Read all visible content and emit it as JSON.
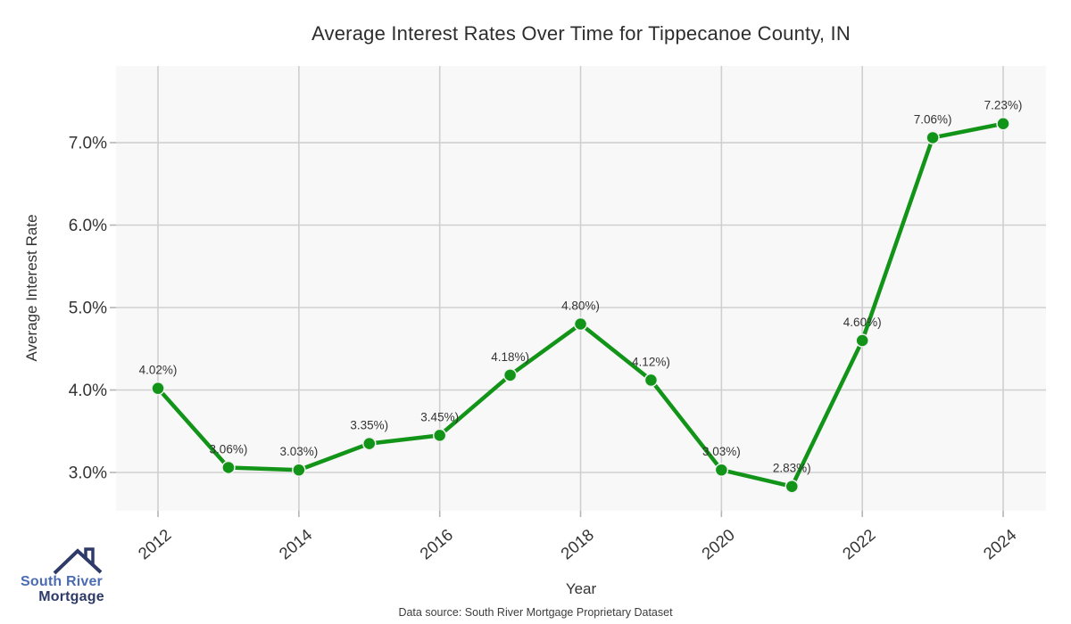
{
  "title": "Average Interest Rates Over Time for Tippecanoe County, IN",
  "footer": {
    "source_note": "Data source: South River Mortgage Proprietary Dataset"
  },
  "logo": {
    "line1": "South River",
    "line2": "Mortgage",
    "icon": "house-roof-icon",
    "text_color_primary": "#4a6cb3",
    "text_color_secondary": "#2e3a68"
  },
  "chart_data": {
    "type": "line",
    "title": "Average Interest Rates Over Time for Tippecanoe County, IN",
    "xlabel": "Year",
    "ylabel": "Average Interest Rate",
    "x": [
      2012,
      2013,
      2014,
      2015,
      2016,
      2017,
      2018,
      2019,
      2020,
      2021,
      2022,
      2023,
      2024
    ],
    "series": [
      {
        "name": "Average Interest Rate",
        "values": [
          4.02,
          3.06,
          3.03,
          3.35,
          3.45,
          4.18,
          4.8,
          4.12,
          3.03,
          2.83,
          4.6,
          7.06,
          7.23
        ]
      }
    ],
    "point_labels": [
      "4.02%)",
      "3.06%)",
      "3.03%)",
      "3.35%)",
      "3.45%)",
      "4.18%)",
      "4.80%)",
      "4.12%)",
      "3.03%)",
      "2.83%)",
      "4.60%)",
      "7.06%)",
      "7.23%)"
    ],
    "xtick_values": [
      2012,
      2014,
      2016,
      2018,
      2020,
      2022,
      2024
    ],
    "xtick_labels": [
      "2012",
      "2014",
      "2016",
      "2018",
      "2020",
      "2022",
      "2024"
    ],
    "ytick_values": [
      3,
      4,
      5,
      6,
      7
    ],
    "ytick_labels": [
      "3.0%",
      "4.0%",
      "5.0%",
      "6.0%",
      "7.0%"
    ],
    "xlim": [
      2011.404,
      2024.608
    ],
    "ylim": [
      2.535,
      7.93
    ],
    "grid": true,
    "legend": "none",
    "line_color": "#119418",
    "marker_color": "#119418",
    "marker_edge_color": "#f2f2f2",
    "plot_bg_color": "#f8f8f8",
    "grid_color": "#cfcfcf",
    "tick_color": "#b5b5b5",
    "text_color": "#333333"
  }
}
